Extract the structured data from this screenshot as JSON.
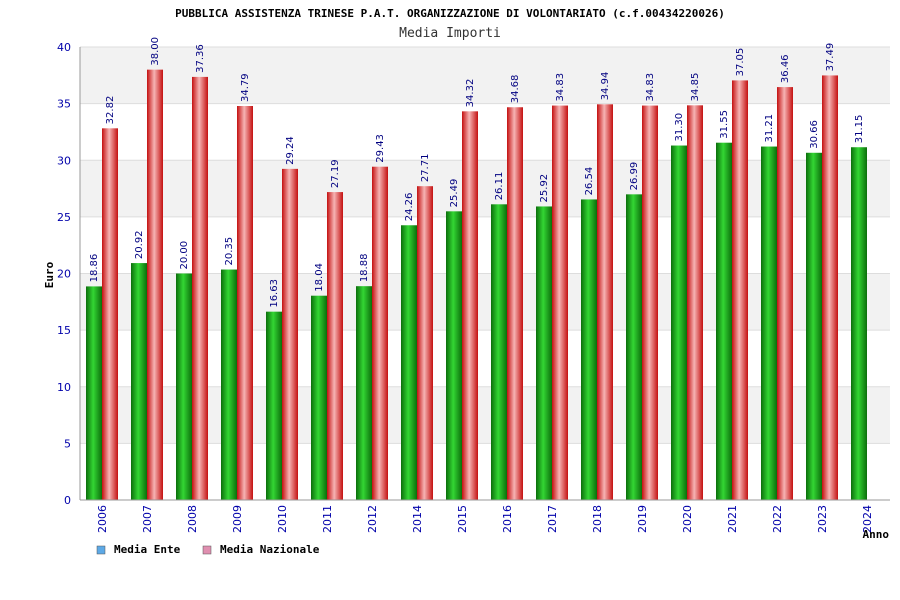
{
  "chart_data": {
    "type": "bar",
    "title": "PUBBLICA ASSISTENZA TRINESE P.A.T. ORGANIZZAZIONE DI VOLONTARIATO (c.f.00434220026)",
    "subtitle": "Media Importi",
    "xlabel": "Anno",
    "ylabel": "Euro",
    "ylim": [
      0,
      40
    ],
    "yticks": [
      0,
      5,
      10,
      15,
      20,
      25,
      30,
      35,
      40
    ],
    "categories": [
      "2006",
      "2007",
      "2008",
      "2009",
      "2010",
      "2011",
      "2012",
      "2014",
      "2015",
      "2016",
      "2017",
      "2018",
      "2019",
      "2020",
      "2021",
      "2022",
      "2023",
      "2024"
    ],
    "series": [
      {
        "name": "Media Ente",
        "color": "#1aa31a",
        "legend_color": "#5da9e6",
        "values": [
          18.86,
          20.92,
          20.0,
          20.35,
          16.63,
          18.04,
          18.88,
          24.26,
          25.49,
          26.11,
          25.92,
          26.54,
          26.99,
          31.3,
          31.55,
          31.21,
          30.66,
          31.15
        ],
        "labels": [
          "18.86",
          "20.92",
          "20.00",
          "20.35",
          "16.63",
          "18.04",
          "18.88",
          "24.26",
          "25.49",
          "26.11",
          "25.92",
          "26.54",
          "26.99",
          "31.30",
          "31.55",
          "31.21",
          "30.66",
          "31.15"
        ]
      },
      {
        "name": "Media Nazionale",
        "color": "#e62a2a",
        "legend_color": "#e08fb0",
        "values": [
          32.82,
          38.0,
          37.36,
          34.79,
          29.24,
          27.19,
          29.43,
          27.71,
          34.32,
          34.68,
          34.83,
          34.94,
          34.83,
          34.85,
          37.05,
          36.46,
          37.49,
          null
        ],
        "labels": [
          "32.82",
          "38.00",
          "37.36",
          "34.79",
          "29.24",
          "27.19",
          "29.43",
          "27.71",
          "34.32",
          "34.68",
          "34.83",
          "34.94",
          "34.83",
          "34.85",
          "37.05",
          "36.46",
          "37.49",
          ""
        ]
      }
    ],
    "legend_position": "bottom-left",
    "grid": true
  }
}
